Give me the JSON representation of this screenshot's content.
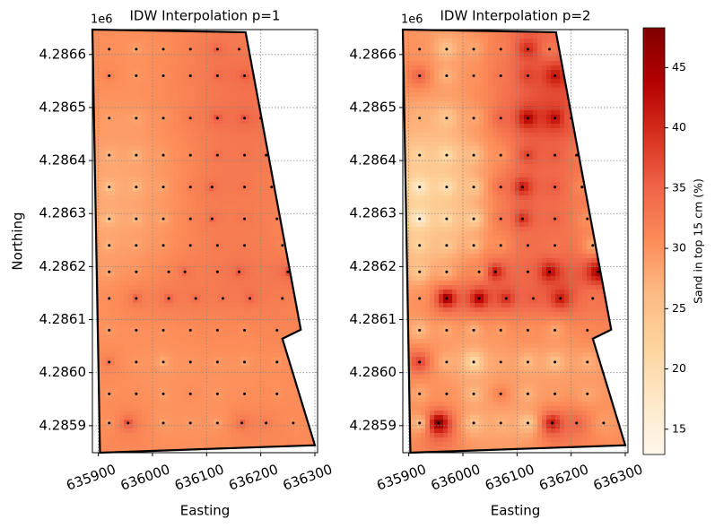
{
  "chart_data": [
    {
      "type": "idw",
      "title": "IDW Interpolation p=1",
      "idw_power": 1,
      "xlabel": "Easting",
      "ylabel": "Northing",
      "y_offset_label": "1e6",
      "xlim": [
        635889,
        636305
      ],
      "ylim": [
        4285849,
        4286647
      ],
      "xticks": [
        635900,
        636000,
        636100,
        636200,
        636300
      ],
      "yticks": [
        {
          "value": 4285900,
          "label": "4.2859"
        },
        {
          "value": 4286000,
          "label": "4.2860"
        },
        {
          "value": 4286100,
          "label": "4.2861"
        },
        {
          "value": 4286200,
          "label": "4.2862"
        },
        {
          "value": 4286300,
          "label": "4.2863"
        },
        {
          "value": 4286400,
          "label": "4.2864"
        },
        {
          "value": 4286500,
          "label": "4.2865"
        },
        {
          "value": 4286600,
          "label": "4.2866"
        }
      ],
      "grid": true,
      "clim": [
        12.9,
        48.3
      ],
      "cmap": [
        "#fff7ec",
        "#fee8c8",
        "#fdd49e",
        "#fdbb84",
        "#fc8d59",
        "#ef6548",
        "#d7301f",
        "#b30000",
        "#7f0000"
      ],
      "boundary": {
        "x": [
          635889,
          636172,
          636274,
          636240,
          636300,
          635903
        ],
        "y": [
          4286647,
          4286642,
          4286081,
          4286064,
          4285863,
          4285849
        ]
      },
      "samples": {
        "x": [
          635920,
          635970,
          636020,
          636070,
          636120,
          636160,
          635920,
          635970,
          636020,
          636070,
          636120,
          636170,
          635920,
          635970,
          636020,
          636070,
          636120,
          636170,
          636200,
          635920,
          635970,
          636020,
          636070,
          636120,
          636170,
          636210,
          635920,
          635970,
          636020,
          636070,
          636110,
          636170,
          636220,
          635920,
          635970,
          636020,
          636070,
          636110,
          636170,
          636230,
          635920,
          635970,
          636020,
          636070,
          636120,
          636170,
          636240,
          635920,
          635970,
          636030,
          636060,
          636120,
          636160,
          636250,
          635920,
          635970,
          636030,
          636080,
          636130,
          636180,
          636240,
          635920,
          635970,
          636020,
          636070,
          636120,
          636170,
          636230,
          635920,
          635970,
          636020,
          636070,
          636120,
          636170,
          636230,
          635920,
          635970,
          636020,
          636070,
          636120,
          636170,
          636230,
          635920,
          635955,
          636020,
          636070,
          636120,
          636165,
          636210,
          636260
        ],
        "y": [
          4286610,
          4286610,
          4286610,
          4286610,
          4286610,
          4286610,
          4286560,
          4286560,
          4286560,
          4286560,
          4286560,
          4286560,
          4286480,
          4286480,
          4286480,
          4286480,
          4286480,
          4286480,
          4286480,
          4286410,
          4286410,
          4286410,
          4286410,
          4286410,
          4286410,
          4286410,
          4286350,
          4286350,
          4286350,
          4286350,
          4286350,
          4286350,
          4286350,
          4286290,
          4286290,
          4286290,
          4286290,
          4286290,
          4286290,
          4286290,
          4286240,
          4286240,
          4286240,
          4286240,
          4286240,
          4286240,
          4286240,
          4286190,
          4286190,
          4286190,
          4286190,
          4286190,
          4286190,
          4286190,
          4286140,
          4286140,
          4286140,
          4286140,
          4286140,
          4286140,
          4286140,
          4286080,
          4286080,
          4286080,
          4286080,
          4286080,
          4286080,
          4286080,
          4286020,
          4286020,
          4286020,
          4286020,
          4286020,
          4286020,
          4286020,
          4285960,
          4285960,
          4285960,
          4285960,
          4285960,
          4285960,
          4285960,
          4285905,
          4285905,
          4285905,
          4285905,
          4285905,
          4285905,
          4285905,
          4285905
        ],
        "values": [
          30,
          25,
          28,
          32,
          40,
          33,
          35,
          27,
          30,
          33,
          38,
          42,
          27,
          24,
          28,
          35,
          44,
          43,
          36,
          22,
          20,
          25,
          30,
          38,
          36,
          33,
          17,
          19,
          24,
          34,
          42,
          36,
          31,
          16,
          20,
          22,
          33,
          40,
          35,
          30,
          22,
          24,
          26,
          30,
          34,
          33,
          28,
          24,
          27,
          30,
          42,
          35,
          44,
          45,
          30,
          46,
          45,
          40,
          36,
          42,
          33,
          26,
          28,
          27,
          29,
          30,
          28,
          31,
          38,
          27,
          20,
          28,
          26,
          25,
          27,
          28,
          30,
          26,
          32,
          27,
          29,
          28,
          26,
          48,
          25,
          27,
          24,
          42,
          35,
          29
        ]
      }
    },
    {
      "type": "idw",
      "title": "IDW Interpolation p=2",
      "idw_power": 2,
      "xlabel": "Easting",
      "y_offset_label": "1e6",
      "xlim": [
        635889,
        636305
      ],
      "ylim": [
        4285849,
        4286647
      ],
      "xticks": [
        635900,
        636000,
        636100,
        636200,
        636300
      ],
      "yticks": [
        {
          "value": 4285900,
          "label": "4.2859"
        },
        {
          "value": 4286000,
          "label": "4.2860"
        },
        {
          "value": 4286100,
          "label": "4.2861"
        },
        {
          "value": 4286200,
          "label": "4.2862"
        },
        {
          "value": 4286300,
          "label": "4.2863"
        },
        {
          "value": 4286400,
          "label": "4.2864"
        },
        {
          "value": 4286500,
          "label": "4.2865"
        },
        {
          "value": 4286600,
          "label": "4.2866"
        }
      ],
      "grid": true,
      "clim": [
        12.9,
        48.3
      ],
      "cmap": [
        "#fff7ec",
        "#fee8c8",
        "#fdd49e",
        "#fdbb84",
        "#fc8d59",
        "#ef6548",
        "#d7301f",
        "#b30000",
        "#7f0000"
      ],
      "boundary": {
        "x": [
          635889,
          636172,
          636274,
          636240,
          636300,
          635903
        ],
        "y": [
          4286647,
          4286642,
          4286081,
          4286064,
          4285863,
          4285849
        ]
      },
      "samples": {
        "x": [
          635920,
          635970,
          636020,
          636070,
          636120,
          636160,
          635920,
          635970,
          636020,
          636070,
          636120,
          636170,
          635920,
          635970,
          636020,
          636070,
          636120,
          636170,
          636200,
          635920,
          635970,
          636020,
          636070,
          636120,
          636170,
          636210,
          635920,
          635970,
          636020,
          636070,
          636110,
          636170,
          636220,
          635920,
          635970,
          636020,
          636070,
          636110,
          636170,
          636230,
          635920,
          635970,
          636020,
          636070,
          636120,
          636170,
          636240,
          635920,
          635970,
          636030,
          636060,
          636120,
          636160,
          636250,
          635920,
          635970,
          636030,
          636080,
          636130,
          636180,
          636240,
          635920,
          635970,
          636020,
          636070,
          636120,
          636170,
          636230,
          635920,
          635970,
          636020,
          636070,
          636120,
          636170,
          636230,
          635920,
          635970,
          636020,
          636070,
          636120,
          636170,
          636230,
          635920,
          635955,
          636020,
          636070,
          636120,
          636165,
          636210,
          636260
        ],
        "y": [
          4286610,
          4286610,
          4286610,
          4286610,
          4286610,
          4286610,
          4286560,
          4286560,
          4286560,
          4286560,
          4286560,
          4286560,
          4286480,
          4286480,
          4286480,
          4286480,
          4286480,
          4286480,
          4286480,
          4286410,
          4286410,
          4286410,
          4286410,
          4286410,
          4286410,
          4286410,
          4286350,
          4286350,
          4286350,
          4286350,
          4286350,
          4286350,
          4286350,
          4286290,
          4286290,
          4286290,
          4286290,
          4286290,
          4286290,
          4286290,
          4286240,
          4286240,
          4286240,
          4286240,
          4286240,
          4286240,
          4286240,
          4286190,
          4286190,
          4286190,
          4286190,
          4286190,
          4286190,
          4286190,
          4286140,
          4286140,
          4286140,
          4286140,
          4286140,
          4286140,
          4286140,
          4286080,
          4286080,
          4286080,
          4286080,
          4286080,
          4286080,
          4286080,
          4286020,
          4286020,
          4286020,
          4286020,
          4286020,
          4286020,
          4286020,
          4285960,
          4285960,
          4285960,
          4285960,
          4285960,
          4285960,
          4285960,
          4285905,
          4285905,
          4285905,
          4285905,
          4285905,
          4285905,
          4285905,
          4285905
        ],
        "values": [
          30,
          25,
          28,
          32,
          40,
          33,
          35,
          27,
          30,
          33,
          38,
          42,
          27,
          24,
          28,
          35,
          44,
          43,
          36,
          22,
          20,
          25,
          30,
          38,
          36,
          33,
          17,
          19,
          24,
          34,
          42,
          36,
          31,
          16,
          20,
          22,
          33,
          40,
          35,
          30,
          22,
          24,
          26,
          30,
          34,
          33,
          28,
          24,
          27,
          30,
          42,
          35,
          44,
          45,
          30,
          46,
          45,
          40,
          36,
          42,
          33,
          26,
          28,
          27,
          29,
          30,
          28,
          31,
          38,
          27,
          20,
          28,
          26,
          25,
          27,
          28,
          30,
          26,
          32,
          27,
          29,
          28,
          26,
          48,
          25,
          27,
          24,
          42,
          35,
          29
        ]
      },
      "colorbar": {
        "label": "Sand in top 15 cm (%)",
        "lim": [
          12.9,
          48.3
        ],
        "ticks": [
          15,
          20,
          25,
          30,
          35,
          40,
          45
        ]
      }
    }
  ]
}
